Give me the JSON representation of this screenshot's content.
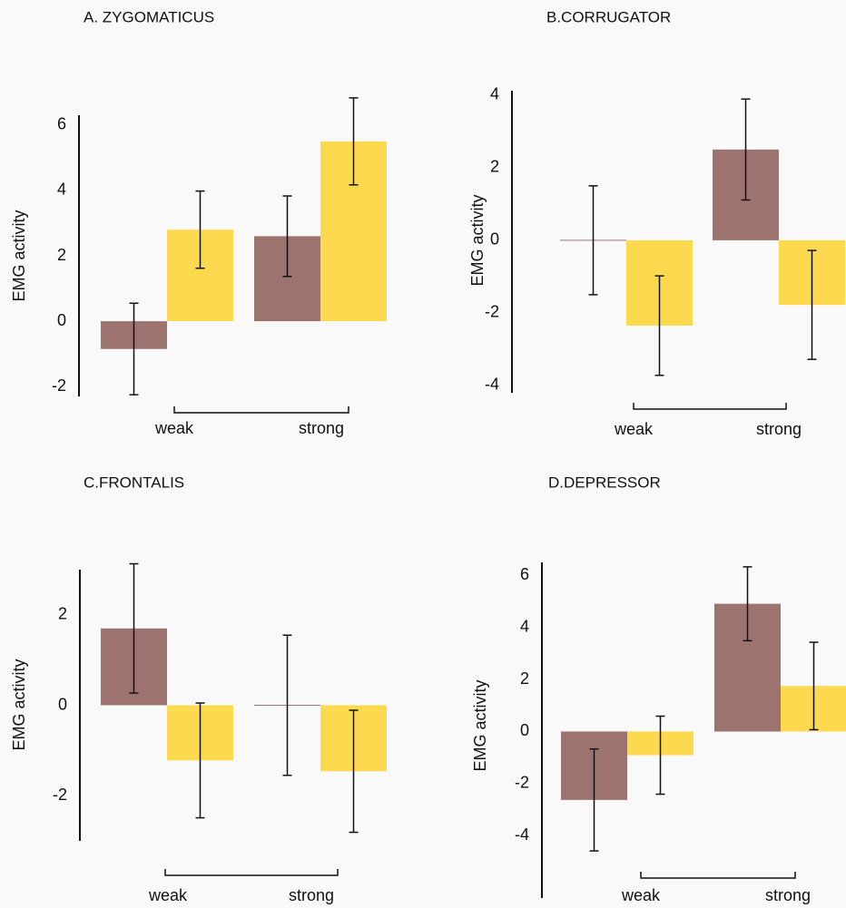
{
  "chart_data": [
    {
      "type": "bar",
      "title": "A. ZYGOMATICUS",
      "y_label": "EMG activity",
      "categories": [
        "weak",
        "strong"
      ],
      "series": [
        {
          "color": "#9d7370",
          "values": [
            -0.85,
            2.6
          ],
          "errors": [
            1.4,
            1.23
          ]
        },
        {
          "color": "#fdd94f",
          "values": [
            2.8,
            5.5
          ],
          "errors": [
            1.18,
            1.33
          ]
        }
      ],
      "ylim": [
        -2.3,
        6.3
      ],
      "yticks": [
        -2,
        0,
        2,
        4,
        6
      ]
    },
    {
      "type": "bar",
      "title": "B.CORRUGATOR",
      "y_label": "EMG activity",
      "categories": [
        "weak",
        "strong"
      ],
      "series": [
        {
          "color": "#9d7370",
          "values": [
            0,
            2.5
          ],
          "errors": [
            1.5,
            1.39
          ]
        },
        {
          "color": "#fdd94f",
          "values": [
            -2.35,
            -1.78
          ],
          "errors": [
            1.37,
            1.5
          ]
        }
      ],
      "ylim": [
        -4.2,
        4.12
      ],
      "yticks": [
        -4,
        -2,
        0,
        2,
        4
      ]
    },
    {
      "type": "bar",
      "title": "C.FRONTALIS",
      "y_label": "EMG activity",
      "categories": [
        "weak",
        "strong"
      ],
      "series": [
        {
          "color": "#9d7370",
          "values": [
            1.7,
            0
          ],
          "errors": [
            1.43,
            1.55
          ]
        },
        {
          "color": "#fdd94f",
          "values": [
            -1.22,
            -1.46
          ],
          "errors": [
            1.27,
            1.35
          ]
        }
      ],
      "ylim": [
        -3,
        3
      ],
      "yticks": [
        -2,
        0,
        2
      ]
    },
    {
      "type": "bar",
      "title": "D.DEPRESSOR",
      "y_label": "EMG activity",
      "categories": [
        "weak",
        "strong"
      ],
      "series": [
        {
          "color": "#9d7370",
          "values": [
            -2.63,
            4.91
          ],
          "errors": [
            1.96,
            1.42
          ]
        },
        {
          "color": "#fdd94f",
          "values": [
            -0.91,
            1.75
          ],
          "errors": [
            1.5,
            1.68
          ]
        }
      ],
      "ylim": [
        -6.4,
        6.5
      ],
      "yticks": [
        -4,
        -2,
        0,
        2,
        4,
        6
      ]
    }
  ]
}
